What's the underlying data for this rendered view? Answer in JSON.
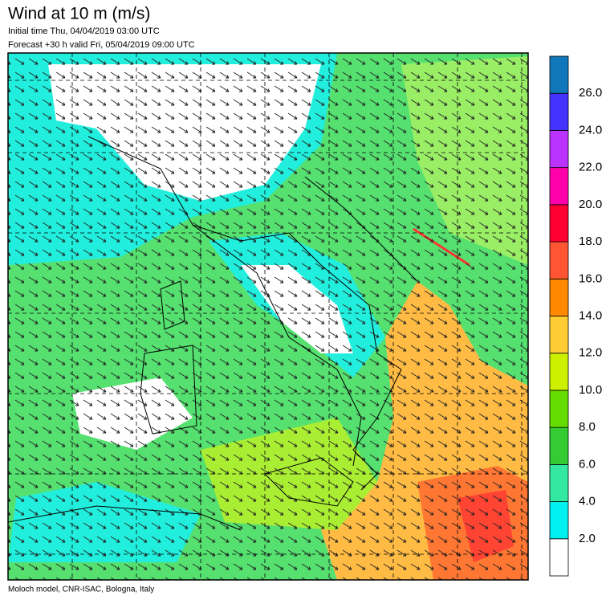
{
  "header": {
    "title": "Wind at 10 m (m/s)",
    "initial_time": "Initial time  Thu, 04/04/2019 03:00 UTC",
    "forecast": "Forecast +30 h valid  Fri, 05/04/2019 09:00 UTC"
  },
  "colorbar": {
    "labels": [
      "2.0",
      "4.0",
      "6.0",
      "8.0",
      "10.0",
      "12.0",
      "14.0",
      "16.0",
      "18.0",
      "20.0",
      "22.0",
      "24.0",
      "26.0"
    ],
    "colors": [
      "#ffffff",
      "#00f0f0",
      "#33e8a0",
      "#33cc33",
      "#66dd00",
      "#ccf000",
      "#ffcc33",
      "#ff8800",
      "#ff5533",
      "#ff0033",
      "#ff00aa",
      "#bb33ff",
      "#4433ff",
      "#1177bb"
    ]
  },
  "footer": "Moloch model, CNR-ISAC, Bologna, Italy"
}
